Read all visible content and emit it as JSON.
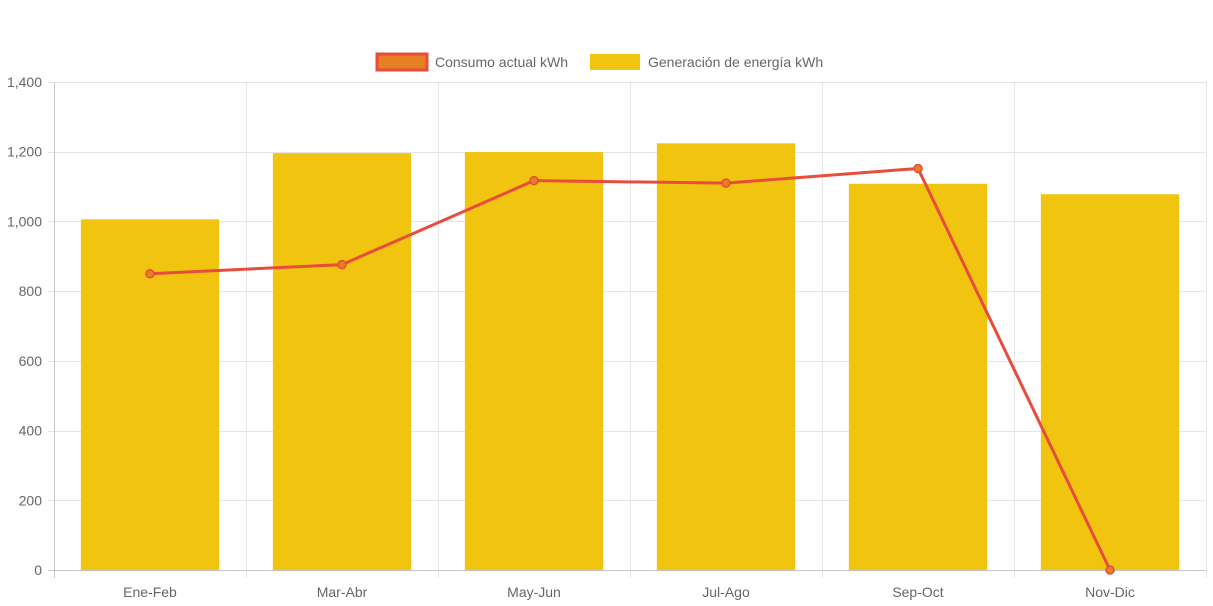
{
  "chart_data": {
    "type": "bar",
    "categories": [
      "Ene-Feb",
      "Mar-Abr",
      "May-Jun",
      "Jul-Ago",
      "Sep-Oct",
      "Nov-Dic"
    ],
    "series": [
      {
        "name": "Consumo actual kWh",
        "type": "line",
        "values": [
          850,
          876,
          1117,
          1110,
          1152,
          0
        ],
        "color": "#e74c3c",
        "marker_color": "#e67e22"
      },
      {
        "name": "Generación de energía kWh",
        "type": "bar",
        "values": [
          1006,
          1196,
          1199,
          1224,
          1108,
          1078
        ],
        "color": "#f1c40f"
      }
    ],
    "ylim": [
      0,
      1400
    ],
    "yticks": [
      0,
      200,
      400,
      600,
      800,
      1000,
      1200,
      1400
    ],
    "ytick_labels": [
      "0",
      "200",
      "400",
      "600",
      "800",
      "1,000",
      "1,200",
      "1,400"
    ],
    "grid": true,
    "legend_position": "top-center"
  }
}
